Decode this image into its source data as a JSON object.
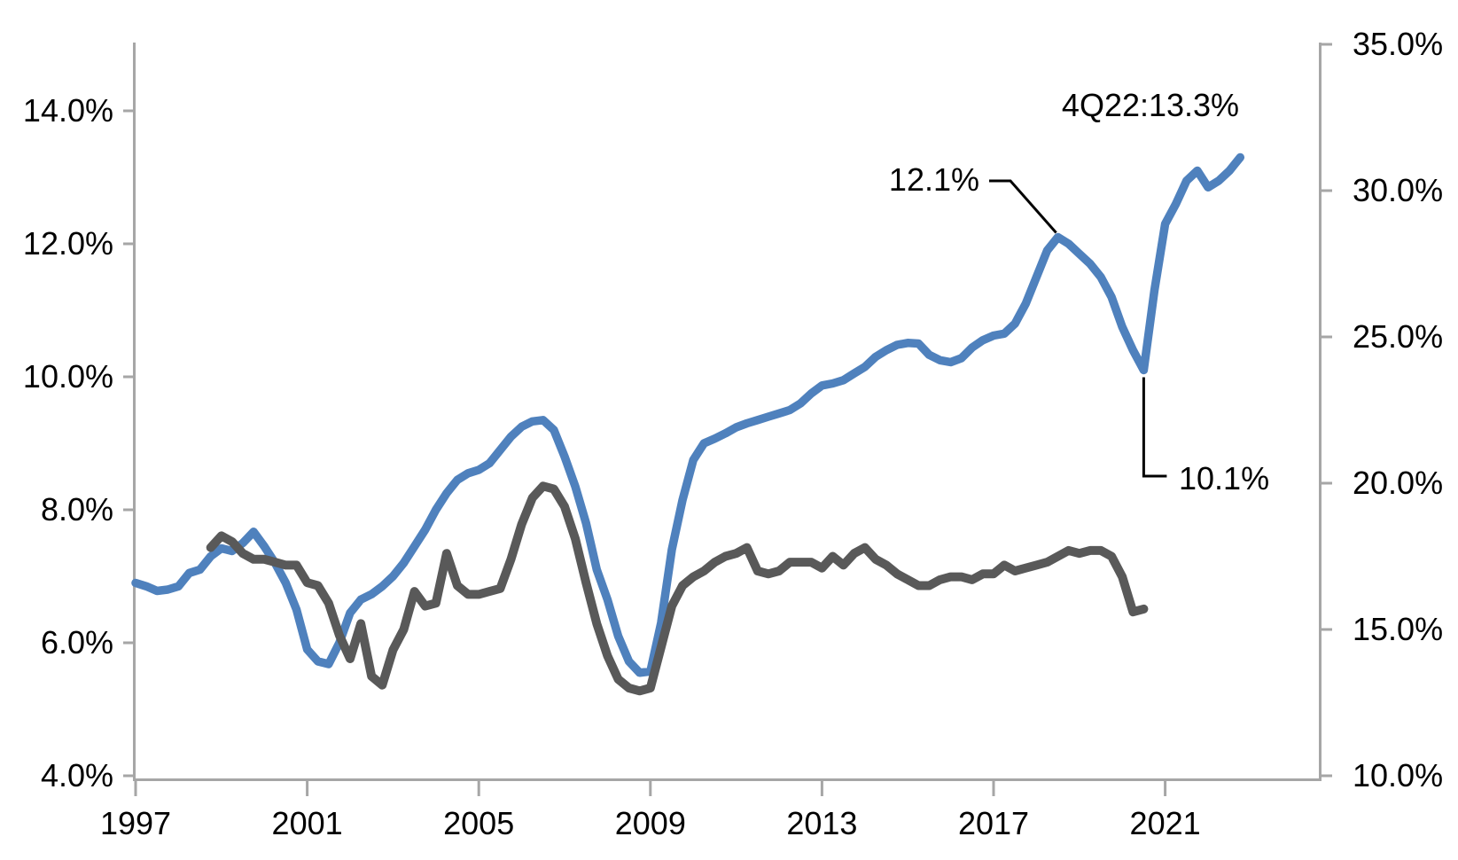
{
  "chart_data": {
    "type": "line",
    "title": "",
    "x_axis": {
      "unit": "quarter",
      "start_year": 1997,
      "end_label": "4Q22",
      "tick_years": [
        1997,
        2001,
        2005,
        2009,
        2013,
        2017,
        2021
      ],
      "tick_labels": [
        "1997",
        "2001",
        "2005",
        "2009",
        "2013",
        "2017",
        "2021"
      ]
    },
    "left_axis": {
      "range": [
        4,
        15
      ],
      "ticks": [
        14,
        12,
        10,
        8,
        6,
        4
      ],
      "tick_labels": [
        "14.0%",
        "12.0%",
        "10.0%",
        "8.0%",
        "6.0%",
        "4.0%"
      ]
    },
    "right_axis": {
      "range": [
        10,
        35
      ],
      "ticks": [
        35,
        30,
        25,
        20,
        15,
        10
      ],
      "tick_labels": [
        "35.0%",
        "30.0%",
        "25.0%",
        "20.0%",
        "15.0%",
        "10.0%"
      ]
    },
    "series": [
      {
        "name": "blue-series-left-axis",
        "axis": "left",
        "color": "#4F81BD",
        "width": 9.5,
        "start_index": 0,
        "values": [
          6.9,
          6.85,
          6.78,
          6.8,
          6.85,
          7.05,
          7.1,
          7.3,
          7.42,
          7.38,
          7.5,
          7.67,
          7.45,
          7.2,
          6.9,
          6.5,
          5.9,
          5.72,
          5.68,
          6.0,
          6.45,
          6.65,
          6.73,
          6.85,
          7.0,
          7.2,
          7.45,
          7.7,
          8.0,
          8.25,
          8.45,
          8.55,
          8.6,
          8.7,
          8.9,
          9.1,
          9.25,
          9.33,
          9.35,
          9.2,
          8.8,
          8.35,
          7.8,
          7.1,
          6.65,
          6.1,
          5.72,
          5.55,
          5.57,
          6.3,
          7.4,
          8.15,
          8.75,
          9.0,
          9.07,
          9.15,
          9.24,
          9.3,
          9.35,
          9.4,
          9.45,
          9.5,
          9.6,
          9.75,
          9.87,
          9.9,
          9.95,
          10.05,
          10.15,
          10.3,
          10.4,
          10.48,
          10.51,
          10.5,
          10.33,
          10.25,
          10.22,
          10.28,
          10.44,
          10.55,
          10.62,
          10.65,
          10.8,
          11.1,
          11.5,
          11.9,
          12.1,
          12.0,
          11.85,
          11.7,
          11.5,
          11.2,
          10.75,
          10.4,
          10.1,
          11.3,
          12.3,
          12.6,
          12.95,
          13.1,
          12.85,
          12.95,
          13.1,
          13.3
        ]
      },
      {
        "name": "gray-series-right-axis",
        "axis": "right",
        "color": "#595959",
        "width": 10,
        "start_index": 7,
        "values": [
          17.8,
          18.2,
          18.0,
          17.6,
          17.4,
          17.4,
          17.3,
          17.2,
          17.2,
          16.6,
          16.5,
          15.9,
          14.8,
          14.0,
          15.2,
          13.4,
          13.1,
          14.3,
          15.0,
          16.3,
          15.8,
          15.9,
          17.6,
          16.5,
          16.2,
          16.2,
          16.3,
          16.4,
          17.4,
          18.6,
          19.5,
          19.9,
          19.8,
          19.2,
          18.1,
          16.6,
          15.2,
          14.1,
          13.3,
          13.0,
          12.9,
          13.0,
          14.4,
          15.8,
          16.5,
          16.8,
          17.0,
          17.3,
          17.5,
          17.6,
          17.8,
          17.0,
          16.9,
          17.0,
          17.3,
          17.3,
          17.3,
          17.1,
          17.5,
          17.2,
          17.6,
          17.8,
          17.4,
          17.2,
          16.9,
          16.7,
          16.5,
          16.5,
          16.7,
          16.8,
          16.8,
          16.7,
          16.9,
          16.9,
          17.2,
          17.0,
          17.1,
          17.2,
          17.3,
          17.5,
          17.7,
          17.6,
          17.7,
          17.7,
          17.5,
          16.8,
          15.6,
          15.7
        ]
      }
    ],
    "annotations": [
      {
        "id": "last-point",
        "text": "4Q22:13.3%"
      },
      {
        "id": "peak-2018",
        "text": "12.1%",
        "anchor_index": 86,
        "anchor_value": 12.1
      },
      {
        "id": "trough-2020",
        "text": "10.1%",
        "anchor_index": 94,
        "anchor_value": 10.1
      }
    ],
    "colors": {
      "blue_line": "#4F81BD",
      "gray_line": "#595959",
      "axis": "#A6A6A6",
      "text": "#000000",
      "leader": "#000000",
      "background": "#FFFFFF"
    },
    "legend": null,
    "grid": false
  }
}
